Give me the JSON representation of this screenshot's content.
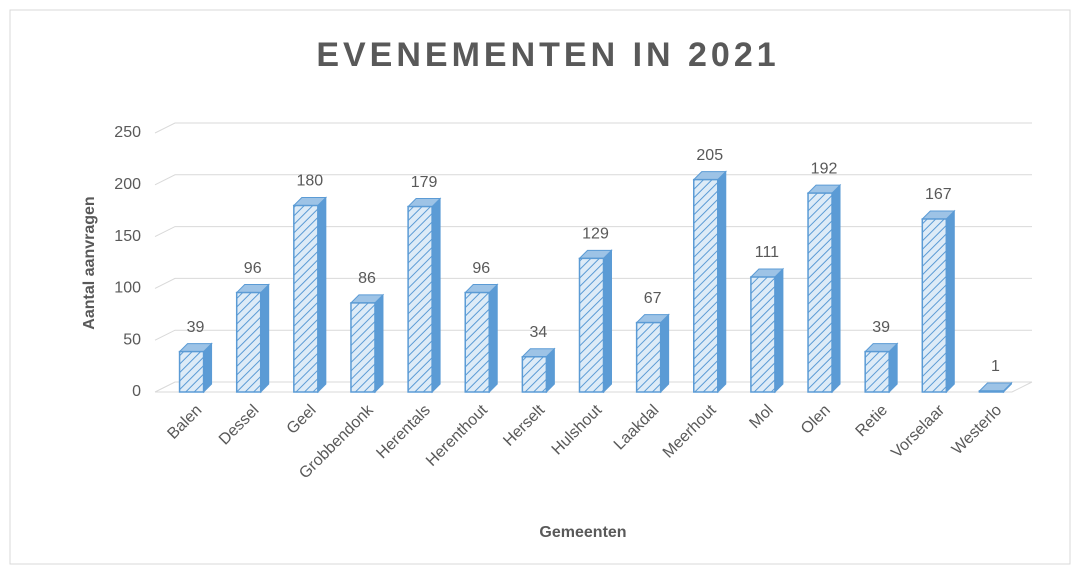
{
  "chart_data": {
    "type": "bar3d",
    "title": "EVENEMENTEN IN 2021",
    "x_label": "Gemeenten",
    "y_label": "Aantal aanvragen",
    "categories": [
      "Balen",
      "Dessel",
      "Geel",
      "Grobbendonk",
      "Herentals",
      "Herenthout",
      "Herselt",
      "Hulshout",
      "Laakdal",
      "Meerhout",
      "Mol",
      "Olen",
      "Retie",
      "Vorselaar",
      "Westerlo"
    ],
    "values": [
      39,
      96,
      180,
      86,
      179,
      96,
      34,
      129,
      67,
      205,
      111,
      192,
      39,
      167,
      1
    ],
    "color": "#5b9bd5",
    "ylim": [
      0,
      250
    ],
    "yticks": [
      0,
      50,
      100,
      150,
      200,
      250
    ],
    "grid": true
  }
}
